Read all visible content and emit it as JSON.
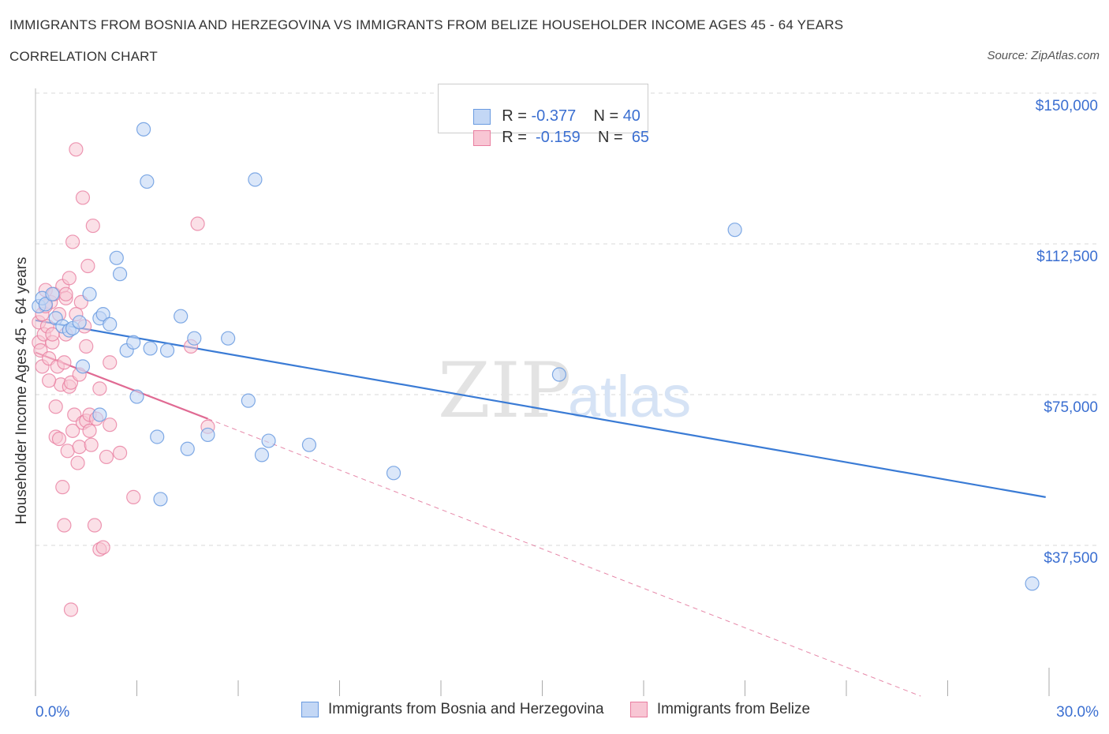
{
  "title": "IMMIGRANTS FROM BOSNIA AND HERZEGOVINA VS IMMIGRANTS FROM BELIZE HOUSEHOLDER INCOME AGES 45 - 64 YEARS",
  "subtitle": "CORRELATION CHART",
  "source": "Source: ZipAtlas.com",
  "watermark": {
    "zip": "ZIP",
    "atlas": "atlas"
  },
  "legend": {
    "series1": {
      "r_label": "R =",
      "r_value": "-0.377",
      "n_label": "N =",
      "n_value": "40"
    },
    "series2": {
      "r_label": "R =",
      "r_value": "-0.159",
      "n_label": "N =",
      "n_value": "65"
    }
  },
  "colors": {
    "blue_fill": "#c3d7f5",
    "blue_stroke": "#6a9be0",
    "blue_line": "#3a7bd5",
    "pink_fill": "#f8c6d4",
    "pink_stroke": "#e97ea0",
    "pink_line": "#e06a93",
    "grid": "#d9d9d9",
    "axis_text": "#3b6fd1"
  },
  "chart_data": {
    "type": "scatter",
    "title": "IMMIGRANTS FROM BOSNIA AND HERZEGOVINA VS IMMIGRANTS FROM BELIZE HOUSEHOLDER INCOME AGES 45 - 64 YEARS",
    "xlabel": "",
    "ylabel": "Householder Income Ages 45 - 64 years",
    "xlim": [
      0,
      30
    ],
    "ylim": [
      0,
      150000
    ],
    "x_tick_labels": [
      "0.0%",
      "30.0%"
    ],
    "y_ticks": [
      37500,
      75000,
      112500,
      150000
    ],
    "y_tick_labels": [
      "$37,500",
      "$75,000",
      "$112,500",
      "$150,000"
    ],
    "legend_position": "bottom",
    "series": [
      {
        "name": "Immigrants from Bosnia and Herzegovina",
        "color": "blue",
        "points": [
          [
            0.1,
            97000
          ],
          [
            0.2,
            99000
          ],
          [
            0.3,
            97500
          ],
          [
            0.5,
            100000
          ],
          [
            0.6,
            94000
          ],
          [
            0.8,
            92000
          ],
          [
            1.0,
            91000
          ],
          [
            1.1,
            91500
          ],
          [
            1.3,
            93000
          ],
          [
            1.6,
            100000
          ],
          [
            1.9,
            94000
          ],
          [
            1.4,
            82000
          ],
          [
            2.0,
            95000
          ],
          [
            2.2,
            92500
          ],
          [
            2.4,
            109000
          ],
          [
            2.5,
            105000
          ],
          [
            2.7,
            86000
          ],
          [
            2.9,
            88000
          ],
          [
            3.0,
            74500
          ],
          [
            3.2,
            141000
          ],
          [
            3.3,
            128000
          ],
          [
            3.4,
            86500
          ],
          [
            3.6,
            64500
          ],
          [
            3.7,
            49000
          ],
          [
            3.9,
            86000
          ],
          [
            4.3,
            94500
          ],
          [
            4.5,
            61500
          ],
          [
            4.7,
            89000
          ],
          [
            5.1,
            65000
          ],
          [
            5.7,
            89000
          ],
          [
            6.3,
            73500
          ],
          [
            6.5,
            128500
          ],
          [
            6.7,
            60000
          ],
          [
            6.9,
            63500
          ],
          [
            8.1,
            62500
          ],
          [
            10.6,
            55500
          ],
          [
            15.5,
            80000
          ],
          [
            1.9,
            70000
          ],
          [
            20.7,
            116000
          ],
          [
            29.5,
            28000
          ]
        ],
        "trend": {
          "x": [
            0.0,
            29.9
          ],
          "y": [
            93500,
            49500
          ]
        }
      },
      {
        "name": "Immigrants from Belize",
        "color": "pink",
        "points": [
          [
            0.1,
            93000
          ],
          [
            0.1,
            88000
          ],
          [
            0.15,
            86000
          ],
          [
            0.2,
            95000
          ],
          [
            0.2,
            82000
          ],
          [
            0.25,
            90000
          ],
          [
            0.3,
            101000
          ],
          [
            0.35,
            92000
          ],
          [
            0.4,
            84000
          ],
          [
            0.45,
            98000
          ],
          [
            0.5,
            88000
          ],
          [
            0.55,
            100000
          ],
          [
            0.6,
            64500
          ],
          [
            0.6,
            72000
          ],
          [
            0.65,
            82000
          ],
          [
            0.7,
            95000
          ],
          [
            0.75,
            77500
          ],
          [
            0.8,
            102000
          ],
          [
            0.8,
            52000
          ],
          [
            0.85,
            83000
          ],
          [
            0.85,
            42500
          ],
          [
            0.9,
            99000
          ],
          [
            0.9,
            100000
          ],
          [
            0.95,
            61000
          ],
          [
            1.0,
            104000
          ],
          [
            1.0,
            77000
          ],
          [
            1.05,
            78000
          ],
          [
            1.1,
            113000
          ],
          [
            1.1,
            66000
          ],
          [
            1.15,
            70000
          ],
          [
            1.2,
            136000
          ],
          [
            1.25,
            58000
          ],
          [
            1.3,
            80000
          ],
          [
            1.3,
            62000
          ],
          [
            1.35,
            98000
          ],
          [
            1.4,
            124000
          ],
          [
            1.4,
            68000
          ],
          [
            1.45,
            92000
          ],
          [
            1.5,
            87000
          ],
          [
            1.5,
            68500
          ],
          [
            1.55,
            107000
          ],
          [
            1.6,
            70000
          ],
          [
            1.65,
            62500
          ],
          [
            1.7,
            117000
          ],
          [
            1.75,
            42500
          ],
          [
            1.8,
            69000
          ],
          [
            1.9,
            36500
          ],
          [
            1.9,
            76500
          ],
          [
            2.0,
            37000
          ],
          [
            2.1,
            59500
          ],
          [
            2.2,
            83000
          ],
          [
            2.5,
            60500
          ],
          [
            2.9,
            49500
          ],
          [
            4.6,
            87000
          ],
          [
            4.8,
            117500
          ],
          [
            5.1,
            67000
          ],
          [
            1.05,
            21500
          ],
          [
            0.7,
            64000
          ],
          [
            0.5,
            90000
          ],
          [
            1.2,
            95000
          ],
          [
            0.3,
            97000
          ],
          [
            0.9,
            90000
          ],
          [
            1.6,
            66000
          ],
          [
            0.4,
            78500
          ],
          [
            2.2,
            67500
          ]
        ],
        "trend": {
          "x": [
            0.0,
            5.1
          ],
          "y": [
            85500,
            69000
          ]
        },
        "trend_extension": {
          "x": [
            5.1,
            26.2
          ],
          "y": [
            69000,
            0
          ]
        }
      }
    ]
  }
}
